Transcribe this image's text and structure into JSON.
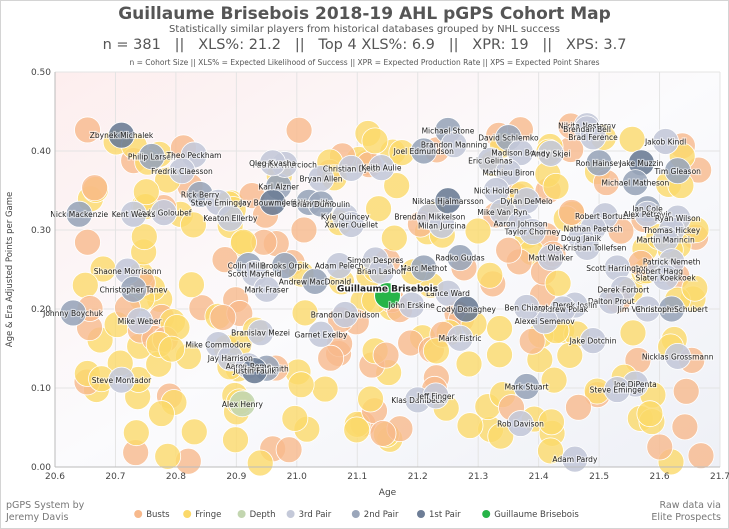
{
  "header": {
    "title": "Guillaume Brisebois 2018-19 AHL pGPS Cohort Map",
    "subtitle": "Statistically similar players from historical databases grouped by NHL success",
    "stats_line": "n = 381   ||   XLS%: 21.2   ||   Top 4 XLS%: 6.9   ||   XPR: 19   ||   XPS: 3.7",
    "definitions": "n = Cohort Size || XLS% = Expected Likelihood of Success || XPR = Expected Production Rate || XPS = Expected Point Shares"
  },
  "footer": {
    "left_line1": "pGPS System by",
    "left_line2": "Jeremy Davis",
    "right_line1": "Raw data via",
    "right_line2": "Elite Prospects"
  },
  "colors": {
    "busts": "#f7b98c",
    "fringe": "#fbd96a",
    "depth": "#c3d6b0",
    "third_pair": "#c4c9d9",
    "second_pair": "#9aa6ba",
    "first_pair": "#6d7d96",
    "subject": "#27b448"
  },
  "chart_data": {
    "type": "scatter",
    "xlabel": "Age",
    "ylabel": "Age & Era Adjusted Points per Game",
    "xlim": [
      20.6,
      21.7
    ],
    "ylim": [
      0.0,
      0.5
    ],
    "xticks": [
      "20.6",
      "20.7",
      "20.8",
      "20.9",
      "21.0",
      "21.1",
      "21.2",
      "21.3",
      "21.4",
      "21.5",
      "21.6",
      "21.7"
    ],
    "yticks": [
      "0.00",
      "0.10",
      "0.20",
      "0.30",
      "0.40",
      "0.50"
    ],
    "grid": true,
    "legend_position": "bottom",
    "legend": [
      {
        "name": "Busts",
        "color_key": "busts"
      },
      {
        "name": "Fringe",
        "color_key": "fringe"
      },
      {
        "name": "Depth",
        "color_key": "depth"
      },
      {
        "name": "3rd Pair",
        "color_key": "third_pair"
      },
      {
        "name": "2nd Pair",
        "color_key": "second_pair"
      },
      {
        "name": "1st Pair",
        "color_key": "first_pair"
      },
      {
        "name": "Guillaume Brisebois",
        "color_key": "subject"
      }
    ],
    "subject": {
      "name": "Guillaume Brisebois",
      "x": 21.15,
      "y": 0.217
    },
    "labeled_points": [
      {
        "name": "Zbynek Michalek",
        "x": 20.71,
        "y": 0.42,
        "group": "first_pair"
      },
      {
        "name": "Philip Larsen",
        "x": 20.76,
        "y": 0.393,
        "group": "second_pair"
      },
      {
        "name": "Theo Peckham",
        "x": 20.83,
        "y": 0.395,
        "group": "third_pair"
      },
      {
        "name": "Fredrik Claesson",
        "x": 20.81,
        "y": 0.375,
        "group": "third_pair"
      },
      {
        "name": "Rick Berry",
        "x": 20.84,
        "y": 0.345,
        "group": "second_pair"
      },
      {
        "name": "Steve Eminger",
        "x": 20.87,
        "y": 0.335,
        "group": "third_pair"
      },
      {
        "name": "Cody Goloubef",
        "x": 20.78,
        "y": 0.322,
        "group": "third_pair"
      },
      {
        "name": "Nick Mackenzie",
        "x": 20.64,
        "y": 0.32,
        "group": "second_pair"
      },
      {
        "name": "Kent Weeks",
        "x": 20.73,
        "y": 0.32,
        "group": "third_pair"
      },
      {
        "name": "Keaton Ellerby",
        "x": 20.89,
        "y": 0.315,
        "group": "third_pair"
      },
      {
        "name": "Karl Alzner",
        "x": 20.97,
        "y": 0.355,
        "group": "second_pair"
      },
      {
        "name": "Jay Bouwmeester",
        "x": 20.96,
        "y": 0.335,
        "group": "first_pair"
      },
      {
        "name": "Bryan Allen",
        "x": 21.04,
        "y": 0.365,
        "group": "third_pair"
      },
      {
        "name": "Jeff Woywitka",
        "x": 21.02,
        "y": 0.335,
        "group": "second_pair"
      },
      {
        "name": "Brian Dumoulin",
        "x": 21.04,
        "y": 0.333,
        "group": "second_pair"
      },
      {
        "name": "Patrick Wiercioch",
        "x": 20.98,
        "y": 0.383,
        "group": "third_pair"
      },
      {
        "name": "Oleg Kvasha",
        "x": 20.96,
        "y": 0.385,
        "group": "third_pair"
      },
      {
        "name": "Christian Djoos",
        "x": 21.09,
        "y": 0.378,
        "group": "third_pair"
      },
      {
        "name": "Keith Aulie",
        "x": 21.14,
        "y": 0.379,
        "group": "third_pair"
      },
      {
        "name": "Kyle Quincey",
        "x": 21.08,
        "y": 0.317,
        "group": "third_pair"
      },
      {
        "name": "Xavier Ouellet",
        "x": 21.09,
        "y": 0.307,
        "group": "third_pair"
      },
      {
        "name": "Brendan Mikkelson",
        "x": 21.22,
        "y": 0.317,
        "group": "third_pair"
      },
      {
        "name": "Milan Jurcina",
        "x": 21.24,
        "y": 0.306,
        "group": "third_pair"
      },
      {
        "name": "Michael Stone",
        "x": 21.25,
        "y": 0.426,
        "group": "second_pair"
      },
      {
        "name": "Brandon Manning",
        "x": 21.26,
        "y": 0.408,
        "group": "third_pair"
      },
      {
        "name": "Joel Edmundson",
        "x": 21.21,
        "y": 0.4,
        "group": "second_pair"
      },
      {
        "name": "David Schlemko",
        "x": 21.35,
        "y": 0.417,
        "group": "second_pair"
      },
      {
        "name": "Madison Bowey",
        "x": 21.37,
        "y": 0.398,
        "group": "third_pair"
      },
      {
        "name": "Andy Skjei",
        "x": 21.42,
        "y": 0.397,
        "group": "third_pair"
      },
      {
        "name": "Eric Gelinas",
        "x": 21.32,
        "y": 0.388,
        "group": "third_pair"
      },
      {
        "name": "Mathieu Biron",
        "x": 21.35,
        "y": 0.373,
        "group": "third_pair"
      },
      {
        "name": "Nick Holden",
        "x": 21.33,
        "y": 0.35,
        "group": "third_pair"
      },
      {
        "name": "Niklas Hjalmarsson",
        "x": 21.25,
        "y": 0.337,
        "group": "first_pair"
      },
      {
        "name": "Dylan DeMelo",
        "x": 21.38,
        "y": 0.337,
        "group": "third_pair"
      },
      {
        "name": "Mike Van Ryn",
        "x": 21.34,
        "y": 0.323,
        "group": "third_pair"
      },
      {
        "name": "Aaron Johnson",
        "x": 21.37,
        "y": 0.308,
        "group": "third_pair"
      },
      {
        "name": "Taylor Chorney",
        "x": 21.39,
        "y": 0.298,
        "group": "third_pair"
      },
      {
        "name": "Nikita Nesterov",
        "x": 21.48,
        "y": 0.432,
        "group": "third_pair"
      },
      {
        "name": "Brendan Bell",
        "x": 21.48,
        "y": 0.428,
        "group": "third_pair"
      },
      {
        "name": "Brad Ference",
        "x": 21.49,
        "y": 0.418,
        "group": "third_pair"
      },
      {
        "name": "Ron Hainsey",
        "x": 21.5,
        "y": 0.385,
        "group": "second_pair"
      },
      {
        "name": "Jakob Kindl",
        "x": 21.61,
        "y": 0.412,
        "group": "third_pair"
      },
      {
        "name": "Jake Muzzin",
        "x": 21.57,
        "y": 0.385,
        "group": "first_pair"
      },
      {
        "name": "Tim Gleason",
        "x": 21.63,
        "y": 0.375,
        "group": "second_pair"
      },
      {
        "name": "Michael Matheson",
        "x": 21.56,
        "y": 0.36,
        "group": "second_pair"
      },
      {
        "name": "Ian Cole",
        "x": 21.58,
        "y": 0.327,
        "group": "second_pair"
      },
      {
        "name": "Robert Bortuzzo",
        "x": 21.51,
        "y": 0.318,
        "group": "third_pair"
      },
      {
        "name": "Alex Petrovic",
        "x": 21.58,
        "y": 0.32,
        "group": "third_pair"
      },
      {
        "name": "Ryan Wilson",
        "x": 21.63,
        "y": 0.315,
        "group": "third_pair"
      },
      {
        "name": "Nathan Paetsch",
        "x": 21.49,
        "y": 0.302,
        "group": "third_pair"
      },
      {
        "name": "Thomas Hickey",
        "x": 21.62,
        "y": 0.3,
        "group": "third_pair"
      },
      {
        "name": "Doug Janik",
        "x": 21.47,
        "y": 0.29,
        "group": "third_pair"
      },
      {
        "name": "Martin Marincin",
        "x": 21.61,
        "y": 0.288,
        "group": "third_pair"
      },
      {
        "name": "Ole-Kristian Tollefsen",
        "x": 21.48,
        "y": 0.278,
        "group": "third_pair"
      },
      {
        "name": "Matt Walker",
        "x": 21.42,
        "y": 0.265,
        "group": "third_pair"
      },
      {
        "name": "Patrick Nemeth",
        "x": 21.62,
        "y": 0.26,
        "group": "third_pair"
      },
      {
        "name": "Scott Harrington",
        "x": 21.53,
        "y": 0.252,
        "group": "third_pair"
      },
      {
        "name": "Robert Hagg",
        "x": 21.6,
        "y": 0.248,
        "group": "third_pair"
      },
      {
        "name": "Slater Koekkoek",
        "x": 21.61,
        "y": 0.24,
        "group": "third_pair"
      },
      {
        "name": "Derek Forbort",
        "x": 21.54,
        "y": 0.225,
        "group": "third_pair"
      },
      {
        "name": "Dalton Prout",
        "x": 21.52,
        "y": 0.21,
        "group": "third_pair"
      },
      {
        "name": "Jim Vandermeer",
        "x": 21.58,
        "y": 0.2,
        "group": "third_pair"
      },
      {
        "name": "Christoph Schubert",
        "x": 21.62,
        "y": 0.2,
        "group": "second_pair"
      },
      {
        "name": "Nicklas Grossmann",
        "x": 21.63,
        "y": 0.14,
        "group": "third_pair"
      },
      {
        "name": "Derek Joslin",
        "x": 21.46,
        "y": 0.205,
        "group": "third_pair"
      },
      {
        "name": "Andrew Polak",
        "x": 21.44,
        "y": 0.2,
        "group": "third_pair"
      },
      {
        "name": "Alexei Semenov",
        "x": 21.41,
        "y": 0.185,
        "group": "third_pair"
      },
      {
        "name": "Ben Chiarot",
        "x": 21.38,
        "y": 0.202,
        "group": "third_pair"
      },
      {
        "name": "Jake Dotchin",
        "x": 21.49,
        "y": 0.16,
        "group": "third_pair"
      },
      {
        "name": "Joe DiPenta",
        "x": 21.56,
        "y": 0.105,
        "group": "third_pair"
      },
      {
        "name": "Steve Eminger",
        "x": 21.53,
        "y": 0.098,
        "group": "third_pair"
      },
      {
        "name": "Mark Stuart",
        "x": 21.38,
        "y": 0.102,
        "group": "second_pair"
      },
      {
        "name": "Rob Davison",
        "x": 21.37,
        "y": 0.055,
        "group": "third_pair"
      },
      {
        "name": "Adam Pardy",
        "x": 21.46,
        "y": 0.01,
        "group": "third_pair"
      },
      {
        "name": "Radko Gudas",
        "x": 21.27,
        "y": 0.265,
        "group": "second_pair"
      },
      {
        "name": "Marc Methot",
        "x": 21.21,
        "y": 0.252,
        "group": "second_pair"
      },
      {
        "name": "Lance Ward",
        "x": 21.25,
        "y": 0.22,
        "group": "third_pair"
      },
      {
        "name": "John Erskine",
        "x": 21.19,
        "y": 0.205,
        "group": "third_pair"
      },
      {
        "name": "Cody Donaghey",
        "x": 21.28,
        "y": 0.2,
        "group": "first_pair"
      },
      {
        "name": "Mark Fistric",
        "x": 21.27,
        "y": 0.163,
        "group": "third_pair"
      },
      {
        "name": "Klas Dahlbeck",
        "x": 21.2,
        "y": 0.085,
        "group": "third_pair"
      },
      {
        "name": "Jeff Finger",
        "x": 21.23,
        "y": 0.09,
        "group": "third_pair"
      },
      {
        "name": "Simon Despres",
        "x": 21.13,
        "y": 0.262,
        "group": "third_pair"
      },
      {
        "name": "Adam Pelech",
        "x": 21.07,
        "y": 0.255,
        "group": "third_pair"
      },
      {
        "name": "Brian Lashoff",
        "x": 21.14,
        "y": 0.248,
        "group": "third_pair"
      },
      {
        "name": "Andrew MacDonald",
        "x": 21.03,
        "y": 0.235,
        "group": "second_pair"
      },
      {
        "name": "Brandon Davidson",
        "x": 21.08,
        "y": 0.193,
        "group": "third_pair"
      },
      {
        "name": "Garnet Exelby",
        "x": 21.04,
        "y": 0.168,
        "group": "third_pair"
      },
      {
        "name": "Colin Miller",
        "x": 20.92,
        "y": 0.255,
        "group": "second_pair"
      },
      {
        "name": "Brooks Orpik",
        "x": 20.98,
        "y": 0.255,
        "group": "second_pair"
      },
      {
        "name": "Scott Mayfield",
        "x": 20.93,
        "y": 0.245,
        "group": "third_pair"
      },
      {
        "name": "Mark Fraser",
        "x": 20.95,
        "y": 0.225,
        "group": "third_pair"
      },
      {
        "name": "Shaone Morrisonn",
        "x": 20.72,
        "y": 0.248,
        "group": "third_pair"
      },
      {
        "name": "Christopher Tanev",
        "x": 20.73,
        "y": 0.225,
        "group": "second_pair"
      },
      {
        "name": "Johnny Boychuk",
        "x": 20.63,
        "y": 0.195,
        "group": "second_pair"
      },
      {
        "name": "Mike Weber",
        "x": 20.74,
        "y": 0.185,
        "group": "third_pair"
      },
      {
        "name": "Branislav Mezei",
        "x": 20.94,
        "y": 0.17,
        "group": "third_pair"
      },
      {
        "name": "Mike Commodore",
        "x": 20.87,
        "y": 0.155,
        "group": "third_pair"
      },
      {
        "name": "Jay Harrison",
        "x": 20.89,
        "y": 0.138,
        "group": "third_pair"
      },
      {
        "name": "Aaron Rome",
        "x": 20.92,
        "y": 0.128,
        "group": "third_pair"
      },
      {
        "name": "Jason Smith",
        "x": 20.95,
        "y": 0.125,
        "group": "second_pair"
      },
      {
        "name": "Justin Faulk",
        "x": 20.93,
        "y": 0.122,
        "group": "first_pair"
      },
      {
        "name": "Steve Montador",
        "x": 20.71,
        "y": 0.11,
        "group": "third_pair"
      },
      {
        "name": "Alex Henry",
        "x": 20.91,
        "y": 0.08,
        "group": "depth"
      }
    ]
  }
}
